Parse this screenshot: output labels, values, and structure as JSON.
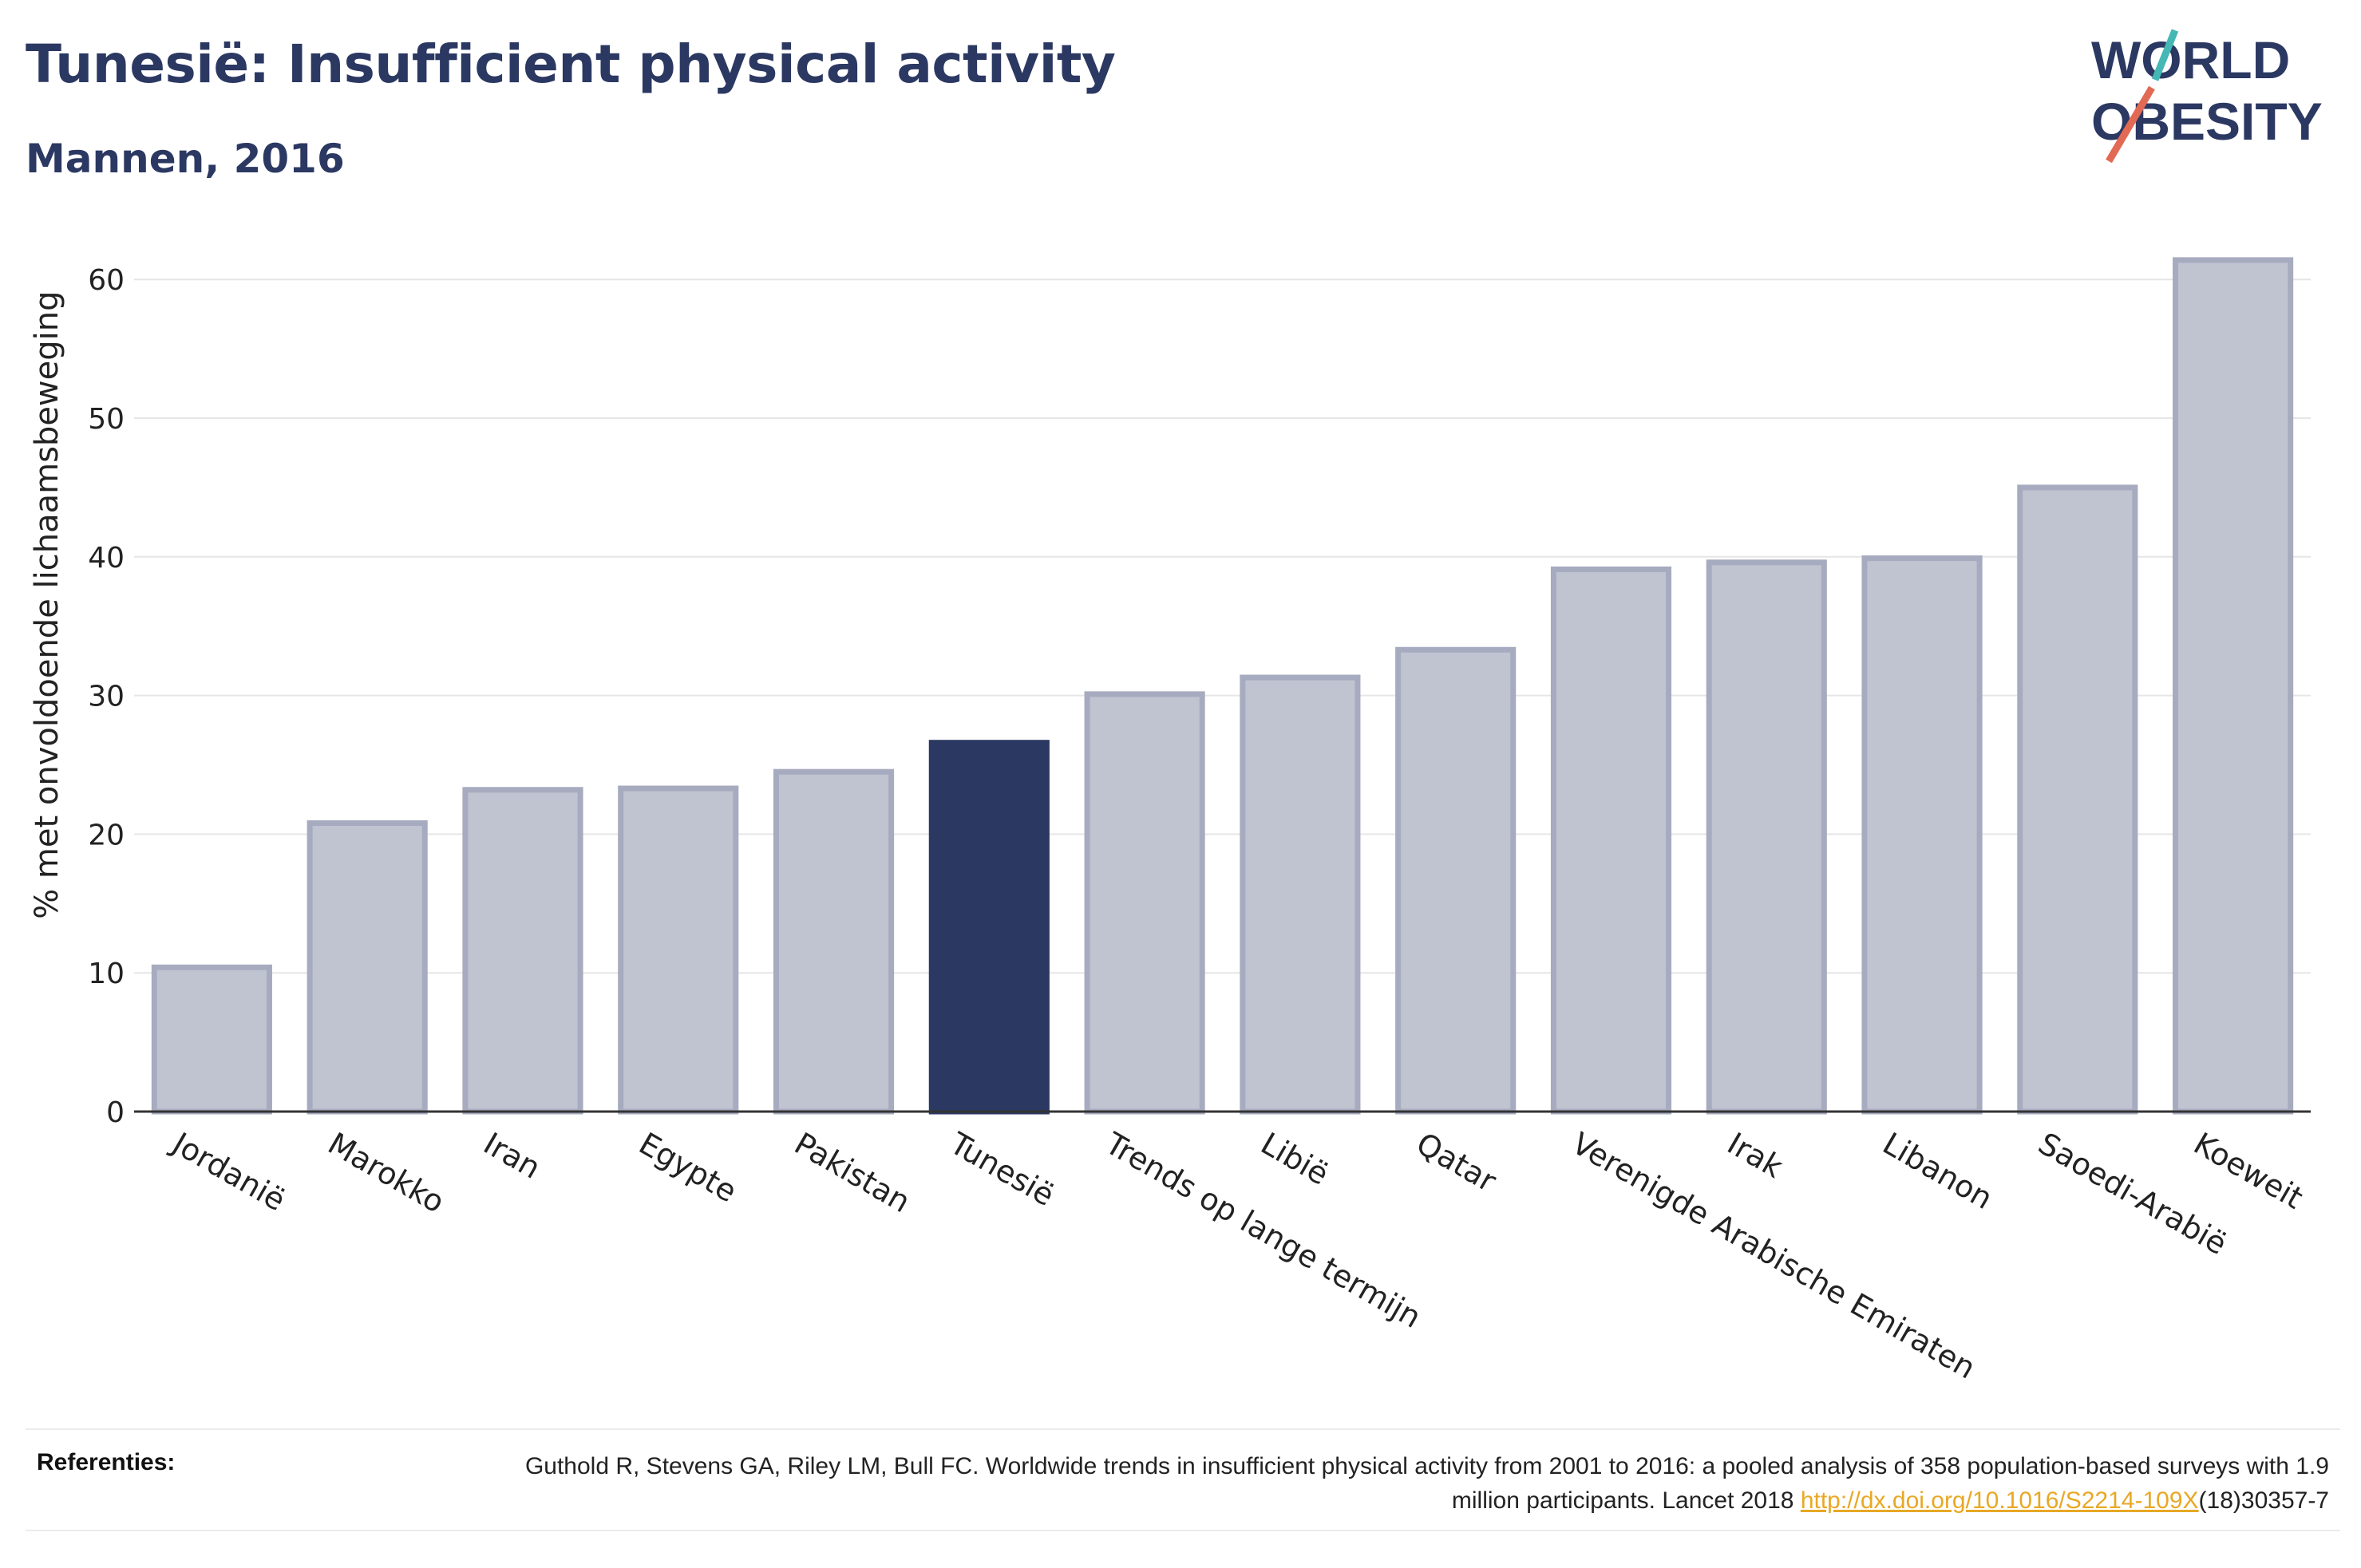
{
  "title": "Tunesië: Insufficient physical activity",
  "subtitle": "Mannen, 2016",
  "logo": {
    "line1": "WORLD",
    "line2": "OBESITY",
    "text_color": "#2b3862",
    "slash_colors": [
      "#45b7b4",
      "#e26a55"
    ]
  },
  "colors": {
    "highlight": "#2b3862",
    "bar": "#c0c3d0",
    "bar_border": "#a7abbf",
    "grid": "#e6e6e6",
    "axis": "#333333",
    "text": "#222222"
  },
  "chart_data": {
    "type": "bar",
    "ylabel": "% met onvoldoende lichaamsbeweging",
    "ylim": [
      0,
      65
    ],
    "yticks": [
      0,
      10,
      20,
      30,
      40,
      50,
      60
    ],
    "grid": true,
    "highlight": "Tunesië",
    "categories": [
      "Jordanië",
      "Marokko",
      "Iran",
      "Egypte",
      "Pakistan",
      "Tunesië",
      "Trends op lange termijn",
      "Libië",
      "Qatar",
      "Verenigde Arabische Emiraten",
      "Irak",
      "Libanon",
      "Saoedi-Arabië",
      "Koeweit"
    ],
    "values": [
      10.4,
      20.8,
      23.2,
      23.3,
      24.5,
      26.6,
      30.1,
      31.3,
      33.3,
      39.1,
      39.6,
      39.9,
      45.0,
      61.4
    ]
  },
  "footer": {
    "label": "Referenties:",
    "text_part1": "Guthold R, Stevens GA, Riley LM, Bull FC. Worldwide trends in insufficient physical activity from 2001 to 2016: a pooled analysis of 358 population-based surveys with 1.9 million participants. Lancet 2018 ",
    "link": "http://dx.doi.org/10.1016/S2214-109X",
    "text_part2": "(18)30357-7"
  }
}
